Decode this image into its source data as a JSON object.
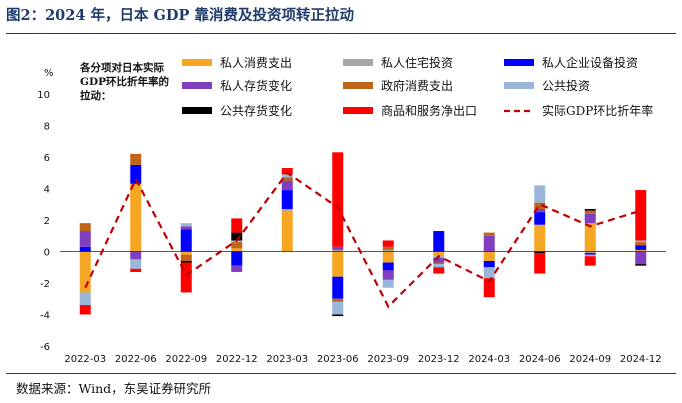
{
  "header": {
    "figure_title": "图2：2024 年，日本 GDP 靠消费及投资项转正拉动"
  },
  "footer": {
    "source": "数据来源：Wind，东吴证券研究所"
  },
  "chart_data": {
    "type": "bar",
    "stacked": true,
    "title": "图2：2024 年，日本 GDP 靠消费及投资项转正拉动",
    "ylabel": "%",
    "ylim": [
      -6,
      10
    ],
    "yticks": [
      -6,
      -4,
      -2,
      0,
      2,
      4,
      6,
      8,
      10
    ],
    "legend_note": [
      "各分项对日本实际",
      "GDP环比折年率的",
      "拉动："
    ],
    "categories": [
      "2022-03",
      "2022-06",
      "2022-09",
      "2022-12",
      "2023-03",
      "2023-06",
      "2023-09",
      "2023-12",
      "2024-03",
      "2024-06",
      "2024-09",
      "2024-12"
    ],
    "xtick_labels": [
      "2022-03",
      "2022-06",
      "2022-09",
      "2022-12",
      "2023-03",
      "2023-06",
      "2023-09",
      "2023-12",
      "2024-03",
      "2024-06",
      "2024-09",
      "2024-12"
    ],
    "series": [
      {
        "name": "私人消费支出",
        "color": "#f5a623",
        "values": [
          -2.6,
          4.3,
          -0.2,
          0.2,
          2.6,
          -1.6,
          -0.7,
          -0.3,
          -0.6,
          1.7,
          1.8,
          0.1
        ]
      },
      {
        "name": "私人住宅投资",
        "color": "#a6a6a6",
        "values": [
          0.0,
          0.0,
          0.0,
          0.0,
          0.1,
          0.1,
          0.1,
          -0.1,
          0.0,
          0.0,
          -0.1,
          0.0
        ]
      },
      {
        "name": "私人企业设备投资",
        "color": "#0000ff",
        "values": [
          0.3,
          1.2,
          1.4,
          -0.9,
          1.2,
          -1.4,
          -0.5,
          1.3,
          -0.4,
          0.8,
          -0.1,
          0.3
        ]
      },
      {
        "name": "私人存货变化",
        "color": "#7f3fbf",
        "values": [
          1.0,
          -0.5,
          0.2,
          -0.4,
          0.6,
          0.2,
          -0.6,
          -0.3,
          1.0,
          0.2,
          0.6,
          -0.8
        ]
      },
      {
        "name": "政府消费支出",
        "color": "#c0641a",
        "values": [
          0.5,
          0.7,
          -0.4,
          0.4,
          0.2,
          -0.2,
          0.2,
          -0.1,
          0.2,
          0.4,
          0.2,
          0.2
        ]
      },
      {
        "name": "公共投资",
        "color": "#9ab6d8",
        "values": [
          -0.8,
          -0.6,
          0.2,
          0.1,
          0.2,
          -0.8,
          -0.5,
          -0.2,
          -0.7,
          1.1,
          -0.1,
          0.1
        ]
      },
      {
        "name": "公共存货变化",
        "color": "#000000",
        "values": [
          0.0,
          0.0,
          -0.1,
          0.5,
          0.0,
          -0.1,
          0.0,
          0.0,
          0.0,
          -0.1,
          0.1,
          -0.1
        ]
      },
      {
        "name": "商品和服务净出口",
        "color": "#ff0000",
        "values": [
          -0.6,
          -0.2,
          -1.9,
          0.9,
          0.4,
          6.0,
          0.4,
          -0.4,
          -1.2,
          -1.3,
          -0.6,
          3.2
        ]
      }
    ],
    "line_series": {
      "name": "实际GDP环比折年率",
      "color": "#c00000",
      "style": "dashed",
      "values": [
        -2.3,
        4.6,
        -1.5,
        0.7,
        5.0,
        2.8,
        -3.5,
        -0.3,
        -1.9,
        3.0,
        1.6,
        2.6
      ]
    }
  }
}
